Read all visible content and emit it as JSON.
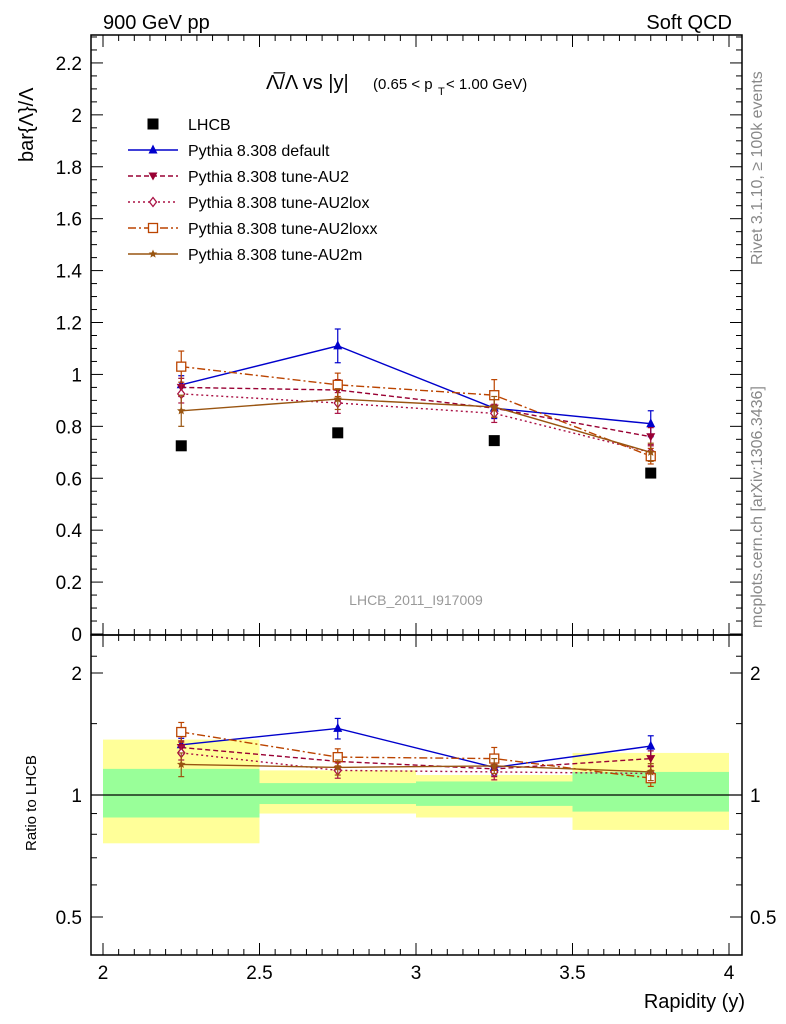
{
  "header": {
    "left": "900 GeV pp",
    "right": "Soft QCD"
  },
  "side_labels": {
    "rivet": "Rivet 3.1.10, ≥ 100k events",
    "mcplots": "mcplots.cern.ch [arXiv:1306.3436]"
  },
  "chart_data": [
    {
      "type": "scatter",
      "panel": "main",
      "title": {
        "main": "Λ̅/Λ vs |y|",
        "kinematics": "(0.65 < p",
        "sub": "T",
        "tail": " < 1.00 GeV)"
      },
      "ylabel": "bar{Λ}/Λ",
      "watermark": "LHCB_2011_I917009",
      "ylim": [
        0,
        2.35
      ],
      "xlim": [
        2,
        4
      ],
      "yticks": [
        "0",
        "0.2",
        "0.4",
        "0.6",
        "0.8",
        "1",
        "1.2",
        "1.4",
        "1.6",
        "1.8",
        "2",
        "2.2"
      ],
      "legend_position": "top-left",
      "x": [
        2.25,
        2.75,
        3.25,
        3.75
      ],
      "series": [
        {
          "name": "LHCB",
          "color": "#000000",
          "marker": "square",
          "values": [
            0.725,
            0.775,
            0.745,
            0.62
          ],
          "errors": [
            0,
            0,
            0,
            0
          ]
        },
        {
          "name": "Pythia 8.308 default",
          "color": "#0000cc",
          "marker": "triangle-up",
          "line": "solid",
          "values": [
            0.96,
            1.11,
            0.87,
            0.81
          ],
          "errors": [
            0.035,
            0.065,
            0.04,
            0.05
          ]
        },
        {
          "name": "Pythia 8.308 tune-AU2",
          "color": "#990033",
          "marker": "triangle-down",
          "line": "dashed",
          "values": [
            0.95,
            0.94,
            0.87,
            0.76
          ],
          "errors": [
            0.035,
            0.04,
            0.035,
            0.035
          ]
        },
        {
          "name": "Pythia 8.308 tune-AU2lox",
          "color": "#aa1144",
          "marker": "diamond-open",
          "line": "dotted",
          "values": [
            0.925,
            0.89,
            0.85,
            0.7
          ],
          "errors": [
            0.035,
            0.04,
            0.035,
            0.03
          ]
        },
        {
          "name": "Pythia 8.308 tune-AU2loxx",
          "color": "#bb4400",
          "marker": "square-open",
          "line": "dashdot",
          "values": [
            1.03,
            0.96,
            0.92,
            0.685
          ],
          "errors": [
            0.06,
            0.045,
            0.06,
            0.03
          ]
        },
        {
          "name": "Pythia 8.308 tune-AU2m",
          "color": "#995511",
          "marker": "star",
          "line": "solid",
          "values": [
            0.86,
            0.905,
            0.875,
            0.7
          ],
          "errors": [
            0.06,
            0.04,
            0.04,
            0.035
          ]
        }
      ]
    },
    {
      "type": "scatter",
      "panel": "ratio",
      "ylabel": "Ratio to LHCB",
      "xlabel": "Rapidity (y)",
      "ylim": [
        0.4,
        2.35
      ],
      "yscale": "log",
      "xlim": [
        2,
        4
      ],
      "xticks": [
        "2",
        "2.5",
        "3",
        "3.5",
        "4"
      ],
      "yticks": [
        "0.5",
        "1",
        "2"
      ],
      "bands": [
        {
          "x": [
            2.0,
            2.5
          ],
          "yellow": [
            0.76,
            1.37
          ],
          "green": [
            0.88,
            1.16
          ]
        },
        {
          "x": [
            2.5,
            3.0
          ],
          "yellow": [
            0.9,
            1.15
          ],
          "green": [
            0.95,
            1.07
          ]
        },
        {
          "x": [
            3.0,
            3.5
          ],
          "yellow": [
            0.88,
            1.12
          ],
          "green": [
            0.94,
            1.08
          ]
        },
        {
          "x": [
            3.5,
            4.0
          ],
          "yellow": [
            0.82,
            1.27
          ],
          "green": [
            0.91,
            1.14
          ]
        }
      ],
      "x": [
        2.25,
        2.75,
        3.25,
        3.75
      ],
      "series": [
        {
          "name": "Pythia 8.308 default",
          "values": [
            1.33,
            1.46,
            1.17,
            1.32
          ],
          "errors": [
            0.05,
            0.085,
            0.05,
            0.08
          ]
        },
        {
          "name": "Pythia 8.308 tune-AU2",
          "values": [
            1.31,
            1.21,
            1.16,
            1.23
          ],
          "errors": [
            0.05,
            0.05,
            0.05,
            0.055
          ]
        },
        {
          "name": "Pythia 8.308 tune-AU2lox",
          "values": [
            1.27,
            1.15,
            1.14,
            1.13
          ],
          "errors": [
            0.05,
            0.05,
            0.05,
            0.05
          ]
        },
        {
          "name": "Pythia 8.308 tune-AU2loxx",
          "values": [
            1.43,
            1.24,
            1.23,
            1.1
          ],
          "errors": [
            0.08,
            0.06,
            0.08,
            0.05
          ]
        },
        {
          "name": "Pythia 8.308 tune-AU2m",
          "values": [
            1.19,
            1.17,
            1.18,
            1.14
          ],
          "errors": [
            0.08,
            0.05,
            0.05,
            0.055
          ]
        }
      ]
    }
  ]
}
